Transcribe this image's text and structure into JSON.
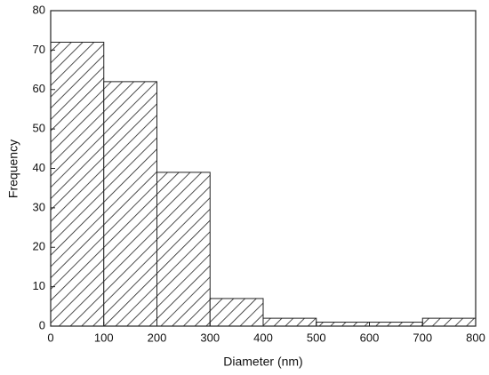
{
  "chart_data": {
    "type": "histogram",
    "x_label": "Diameter (nm)",
    "y_label": "Frequency",
    "bins": [
      0,
      100,
      200,
      300,
      400,
      500,
      600,
      700,
      800
    ],
    "values": [
      72,
      62,
      39,
      7,
      2,
      1,
      1,
      2
    ],
    "color": "#222222",
    "xlim": [
      0,
      800
    ],
    "xticks": [
      0,
      100,
      200,
      300,
      400,
      500,
      600,
      700,
      800
    ],
    "ylim": [
      0,
      80
    ],
    "yticks": [
      0,
      10,
      20,
      30,
      40,
      50,
      60,
      70,
      80
    ],
    "grid": false
  }
}
